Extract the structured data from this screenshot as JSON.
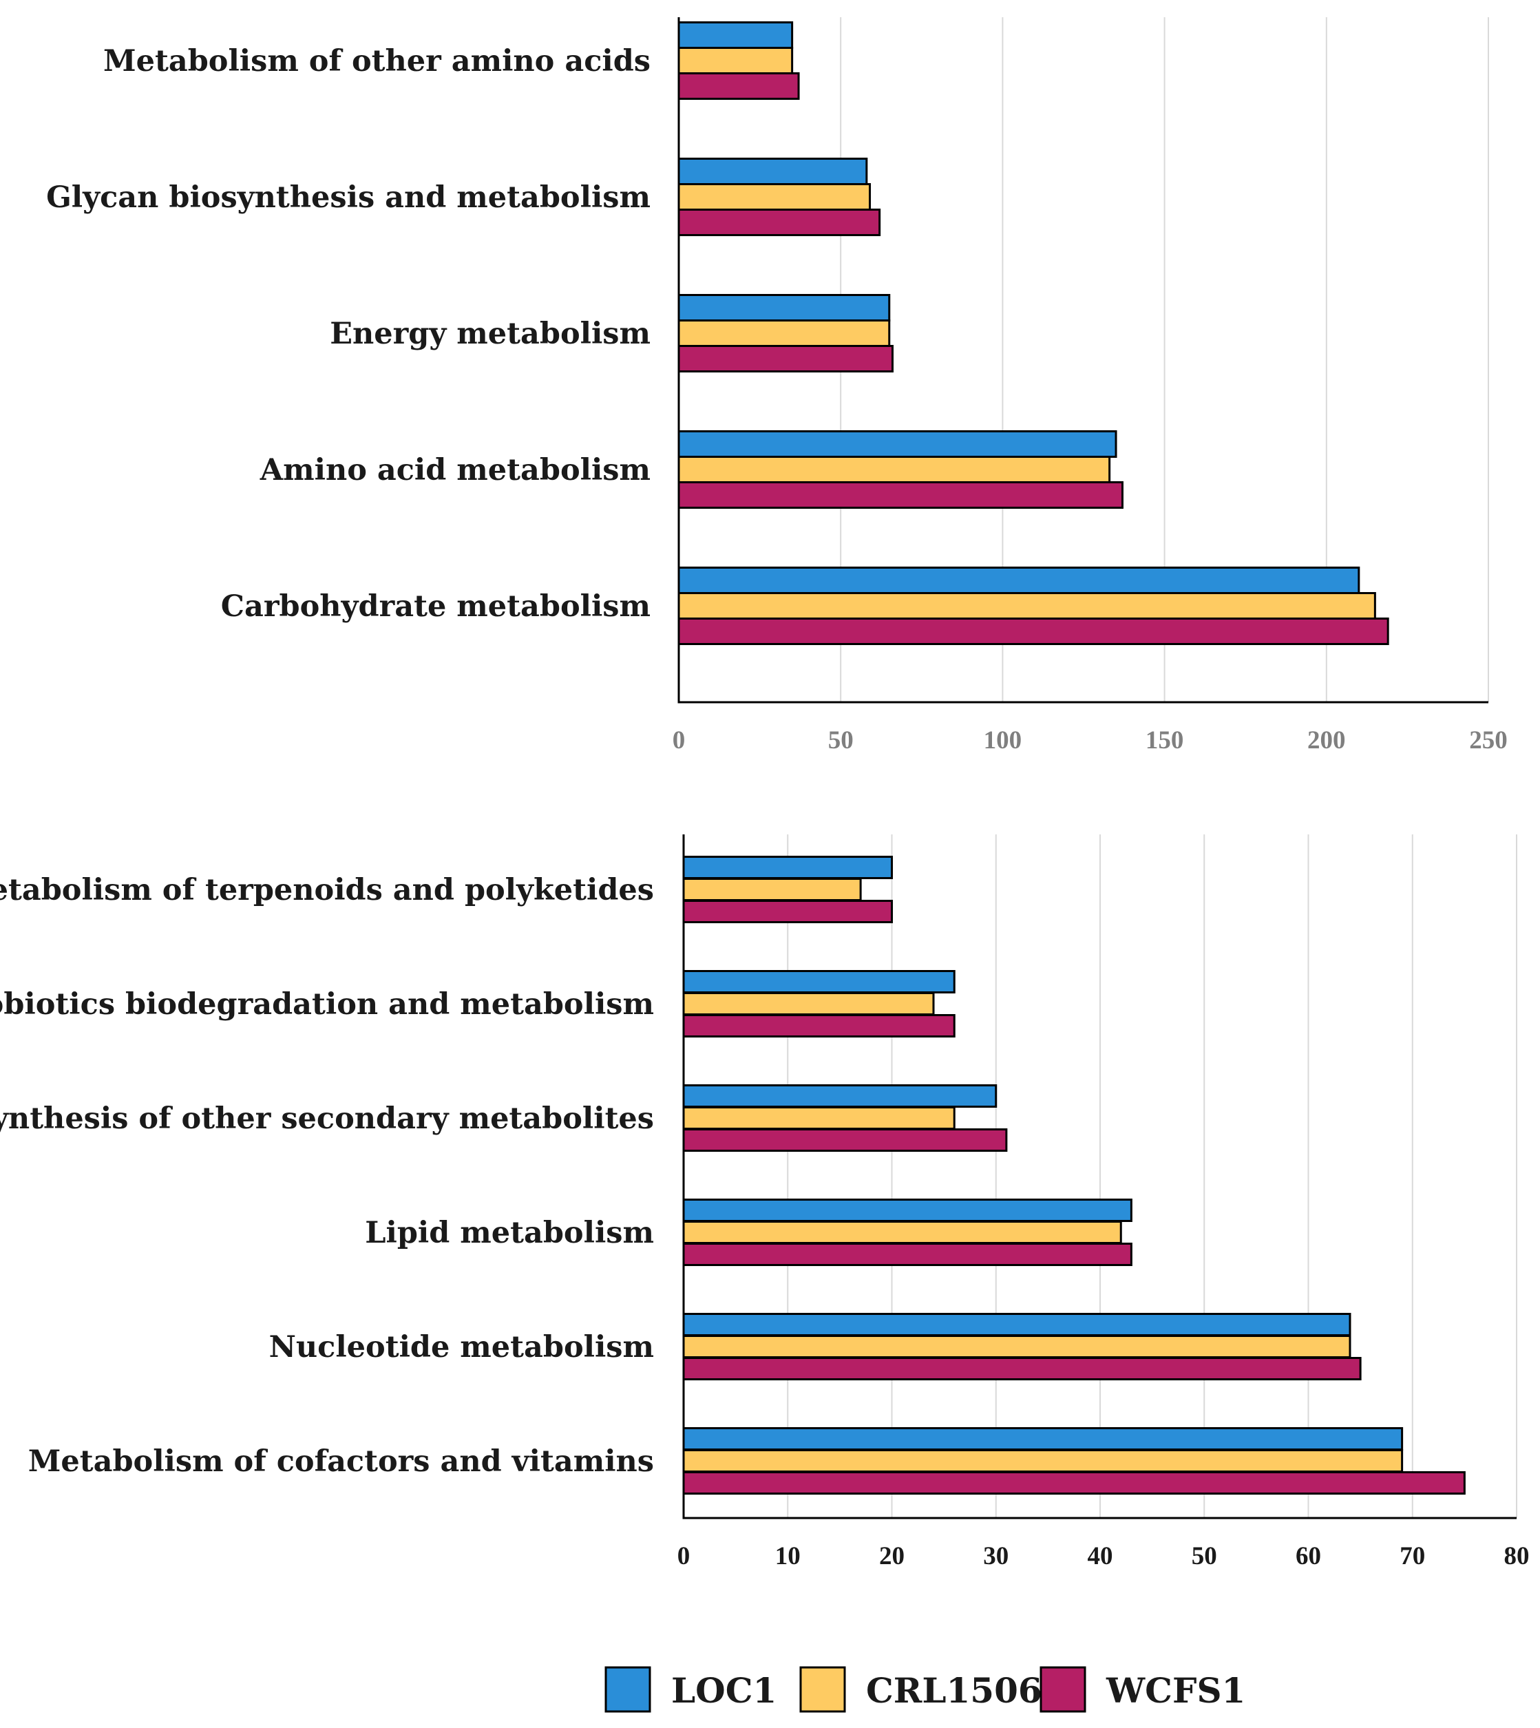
{
  "colors": {
    "LOC1": "#2a8ed8",
    "CRL1506": "#fecb62",
    "WCFS1": "#b51f65",
    "top_tick": "#7f7f7f",
    "bottom_tick": "#1a1a1a"
  },
  "chart_data": [
    {
      "type": "bar",
      "orientation": "horizontal",
      "title": "",
      "xlabel": "",
      "ylabel": "",
      "xlim": [
        0,
        250
      ],
      "ticks": [
        "0",
        "50",
        "100",
        "150",
        "200",
        "250"
      ],
      "categories": [
        "Metabolism of other amino acids",
        "Glycan biosynthesis and metabolism",
        "Energy metabolism",
        "Amino acid metabolism",
        "Carbohydrate metabolism"
      ],
      "series": [
        {
          "name": "LOC1",
          "values": [
            35,
            58,
            65,
            135,
            210
          ]
        },
        {
          "name": "CRL1506",
          "values": [
            35,
            59,
            65,
            133,
            215
          ]
        },
        {
          "name": "WCFS1",
          "values": [
            37,
            62,
            66,
            137,
            219
          ]
        }
      ],
      "grid": true
    },
    {
      "type": "bar",
      "orientation": "horizontal",
      "title": "",
      "xlabel": "",
      "ylabel": "",
      "xlim": [
        0,
        80
      ],
      "ticks": [
        "0",
        "10",
        "20",
        "30",
        "40",
        "50",
        "60",
        "70",
        "80"
      ],
      "categories": [
        "Metabolism of terpenoids and polyketides",
        "Xenobiotics biodegradation and metabolism",
        "Biosynthesis of other secondary metabolites",
        "Lipid metabolism",
        "Nucleotide metabolism",
        "Metabolism of cofactors and vitamins"
      ],
      "series": [
        {
          "name": "LOC1",
          "values": [
            20,
            26,
            30,
            43,
            64,
            69
          ]
        },
        {
          "name": "CRL1506",
          "values": [
            17,
            24,
            26,
            42,
            64,
            69
          ]
        },
        {
          "name": "WCFS1",
          "values": [
            20,
            26,
            31,
            43,
            65,
            75
          ]
        }
      ],
      "grid": true
    }
  ],
  "legend": {
    "position": "bottom-center",
    "items": [
      "LOC1",
      "CRL1506",
      "WCFS1"
    ]
  }
}
